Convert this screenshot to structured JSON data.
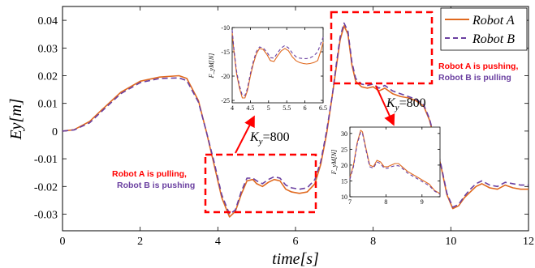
{
  "chart_data": [
    {
      "type": "line",
      "title": "",
      "xlabel": "time[s]",
      "ylabel": "Ey[m]",
      "xlim": [
        0,
        12
      ],
      "ylim": [
        -0.036,
        0.045
      ],
      "x_ticks": [
        "0",
        "2",
        "4",
        "6",
        "8",
        "10",
        "12"
      ],
      "y_ticks": [
        "-0.03",
        "-0.02",
        "-0.01",
        "0",
        "0.01",
        "0.02",
        "0.03",
        "0.04"
      ],
      "grid": false,
      "legend_position": "top-right",
      "series": [
        {
          "name": "Robot A",
          "color": "#e0691f",
          "style": "solid",
          "x": [
            0,
            0.3,
            0.7,
            1.0,
            1.5,
            2.0,
            2.5,
            3.0,
            3.2,
            3.5,
            3.7,
            3.9,
            4.1,
            4.3,
            4.45,
            4.6,
            4.75,
            4.9,
            5.0,
            5.15,
            5.3,
            5.45,
            5.6,
            5.75,
            5.9,
            6.1,
            6.3,
            6.5,
            6.65,
            6.8,
            6.95,
            7.05,
            7.15,
            7.25,
            7.35,
            7.45,
            7.55,
            7.7,
            7.85,
            8.0,
            8.15,
            8.3,
            8.5,
            8.7,
            8.9,
            9.1,
            9.3,
            9.45,
            9.6,
            9.75,
            9.9,
            10.05,
            10.2,
            10.35,
            10.5,
            10.65,
            10.8,
            11.0,
            11.2,
            11.4,
            11.6,
            11.8,
            12.0
          ],
          "values": [
            0,
            0.0005,
            0.0035,
            0.0075,
            0.014,
            0.018,
            0.0195,
            0.02,
            0.019,
            0.011,
            0.0,
            -0.012,
            -0.024,
            -0.031,
            -0.029,
            -0.023,
            -0.018,
            -0.0175,
            -0.019,
            -0.02,
            -0.0185,
            -0.0175,
            -0.018,
            -0.021,
            -0.022,
            -0.0225,
            -0.022,
            -0.019,
            -0.012,
            -0.001,
            0.013,
            0.023,
            0.033,
            0.038,
            0.035,
            0.024,
            0.018,
            0.016,
            0.0155,
            0.016,
            0.0145,
            0.0155,
            0.0135,
            0.0125,
            0.012,
            0.011,
            0.009,
            0.004,
            -0.004,
            -0.013,
            -0.023,
            -0.028,
            -0.027,
            -0.024,
            -0.022,
            -0.02,
            -0.019,
            -0.0205,
            -0.021,
            -0.0195,
            -0.0205,
            -0.021,
            -0.021
          ]
        },
        {
          "name": "Robot B",
          "color": "#6a3fa0",
          "style": "dashed",
          "x": [
            0,
            0.3,
            0.7,
            1.0,
            1.5,
            2.0,
            2.5,
            3.0,
            3.2,
            3.5,
            3.7,
            3.9,
            4.1,
            4.3,
            4.45,
            4.6,
            4.75,
            4.9,
            5.0,
            5.15,
            5.3,
            5.45,
            5.6,
            5.75,
            5.9,
            6.1,
            6.3,
            6.5,
            6.65,
            6.8,
            6.95,
            7.05,
            7.15,
            7.25,
            7.35,
            7.45,
            7.55,
            7.7,
            7.85,
            8.0,
            8.15,
            8.3,
            8.5,
            8.7,
            8.9,
            9.1,
            9.3,
            9.45,
            9.6,
            9.75,
            9.9,
            10.05,
            10.2,
            10.35,
            10.5,
            10.65,
            10.8,
            11.0,
            11.2,
            11.4,
            11.6,
            11.8,
            12.0
          ],
          "values": [
            0,
            0.0004,
            0.003,
            0.007,
            0.0135,
            0.0175,
            0.019,
            0.0192,
            0.0182,
            0.0105,
            0.0,
            -0.011,
            -0.023,
            -0.03,
            -0.0285,
            -0.022,
            -0.017,
            -0.017,
            -0.018,
            -0.019,
            -0.0175,
            -0.0165,
            -0.017,
            -0.0195,
            -0.0205,
            -0.021,
            -0.0205,
            -0.0175,
            -0.011,
            0.0,
            0.013,
            0.024,
            0.034,
            0.039,
            0.036,
            0.025,
            0.019,
            0.017,
            0.0165,
            0.017,
            0.0155,
            0.0165,
            0.0145,
            0.0135,
            0.0125,
            0.0115,
            0.0095,
            0.0045,
            -0.0035,
            -0.0125,
            -0.0225,
            -0.0275,
            -0.0265,
            -0.0235,
            -0.021,
            -0.019,
            -0.018,
            -0.0195,
            -0.02,
            -0.0185,
            -0.019,
            -0.0195,
            -0.0195
          ]
        }
      ]
    },
    {
      "type": "line",
      "title": "",
      "xlabel": "",
      "ylabel": "F_yM[N]",
      "xlim": [
        4,
        6.5
      ],
      "ylim": [
        -25.5,
        -10
      ],
      "x_ticks": [
        "4",
        "4.5",
        "5",
        "5.5",
        "6",
        "6.5"
      ],
      "y_ticks": [
        "-10",
        "-15",
        "-20",
        "-25"
      ],
      "series": [
        {
          "name": "Robot A",
          "color": "#e0691f",
          "style": "solid",
          "x": [
            4.0,
            4.05,
            4.12,
            4.2,
            4.28,
            4.35,
            4.42,
            4.5,
            4.58,
            4.66,
            4.75,
            4.85,
            4.95,
            5.05,
            5.15,
            5.25,
            5.35,
            5.45,
            5.55,
            5.65,
            5.75,
            5.85,
            5.95,
            6.05,
            6.15,
            6.25,
            6.35,
            6.45,
            6.5
          ],
          "values": [
            -11,
            -15,
            -19.5,
            -22.5,
            -24.5,
            -24.5,
            -23,
            -20,
            -17.5,
            -15.5,
            -14.3,
            -14.5,
            -15.5,
            -16.8,
            -17,
            -15.8,
            -14.8,
            -14.3,
            -14.8,
            -16,
            -16.8,
            -17.2,
            -17.4,
            -17.5,
            -17.4,
            -17.2,
            -16.8,
            -14.5,
            -13
          ]
        },
        {
          "name": "Robot B",
          "color": "#6a3fa0",
          "style": "dashed",
          "x": [
            4.0,
            4.05,
            4.12,
            4.2,
            4.28,
            4.35,
            4.42,
            4.5,
            4.58,
            4.66,
            4.75,
            4.85,
            4.95,
            5.05,
            5.15,
            5.25,
            5.35,
            5.45,
            5.55,
            5.65,
            5.75,
            5.85,
            5.95,
            6.05,
            6.15,
            6.25,
            6.35,
            6.45,
            6.5
          ],
          "values": [
            -10.5,
            -14.5,
            -19,
            -22,
            -24,
            -24,
            -22.5,
            -19.5,
            -17,
            -15,
            -14,
            -14.2,
            -15,
            -16.2,
            -16.3,
            -15.2,
            -14.2,
            -13.7,
            -14.2,
            -15.2,
            -16,
            -16.3,
            -16.4,
            -16.4,
            -16.2,
            -15.8,
            -15,
            -13,
            -12
          ]
        }
      ]
    },
    {
      "type": "line",
      "title": "",
      "xlabel": "",
      "ylabel": "F_yM[N]",
      "xlim": [
        7,
        9.5
      ],
      "ylim": [
        10,
        32
      ],
      "x_ticks": [
        "7",
        "8",
        "9"
      ],
      "y_ticks": [
        "10",
        "15",
        "20",
        "25",
        "30"
      ],
      "series": [
        {
          "name": "Robot A",
          "color": "#e0691f",
          "style": "solid",
          "x": [
            7.0,
            7.1,
            7.2,
            7.3,
            7.35,
            7.45,
            7.55,
            7.65,
            7.75,
            7.85,
            7.95,
            8.05,
            8.15,
            8.25,
            8.35,
            8.45,
            8.6,
            8.75,
            8.9,
            9.05,
            9.2,
            9.35,
            9.5
          ],
          "values": [
            16,
            20,
            27,
            31,
            30.5,
            25,
            20,
            19.5,
            21.5,
            21,
            19.5,
            19.5,
            20,
            20.5,
            20.5,
            19.5,
            18,
            17,
            16,
            15,
            14,
            12,
            11
          ]
        },
        {
          "name": "Robot B",
          "color": "#6a3fa0",
          "style": "dashed",
          "x": [
            7.0,
            7.1,
            7.2,
            7.3,
            7.35,
            7.45,
            7.55,
            7.65,
            7.75,
            7.85,
            7.95,
            8.05,
            8.15,
            8.25,
            8.35,
            8.45,
            8.6,
            8.75,
            8.9,
            9.05,
            9.2,
            9.35,
            9.5
          ],
          "values": [
            15.5,
            19.5,
            26.5,
            30.5,
            30,
            24.5,
            19.5,
            19,
            21,
            20.5,
            19,
            19,
            19.5,
            19.8,
            19.8,
            19,
            17.5,
            16.5,
            15.5,
            14.5,
            13.5,
            11.8,
            10.8
          ]
        }
      ]
    }
  ],
  "legend": {
    "robot_a": "Robot A",
    "robot_b": "Robot B"
  },
  "annotations": {
    "pushing_line1": "Robot A is pushing,",
    "pushing_line2": "Robot B is pulling",
    "pulling_line1": "Robot A is pulling,",
    "pulling_line2": "Robot B is pushing",
    "k_left_value": "=800",
    "k_right_value": "=800",
    "k_symbol": "K",
    "k_subscript": "y",
    "pushing_line1_color": "#ff0000",
    "pushing_line2_color": "#6a3fa0",
    "pulling_line1_color": "#ff0000",
    "pulling_line2_color": "#6a3fa0",
    "highlight_color": "#ff0000"
  }
}
